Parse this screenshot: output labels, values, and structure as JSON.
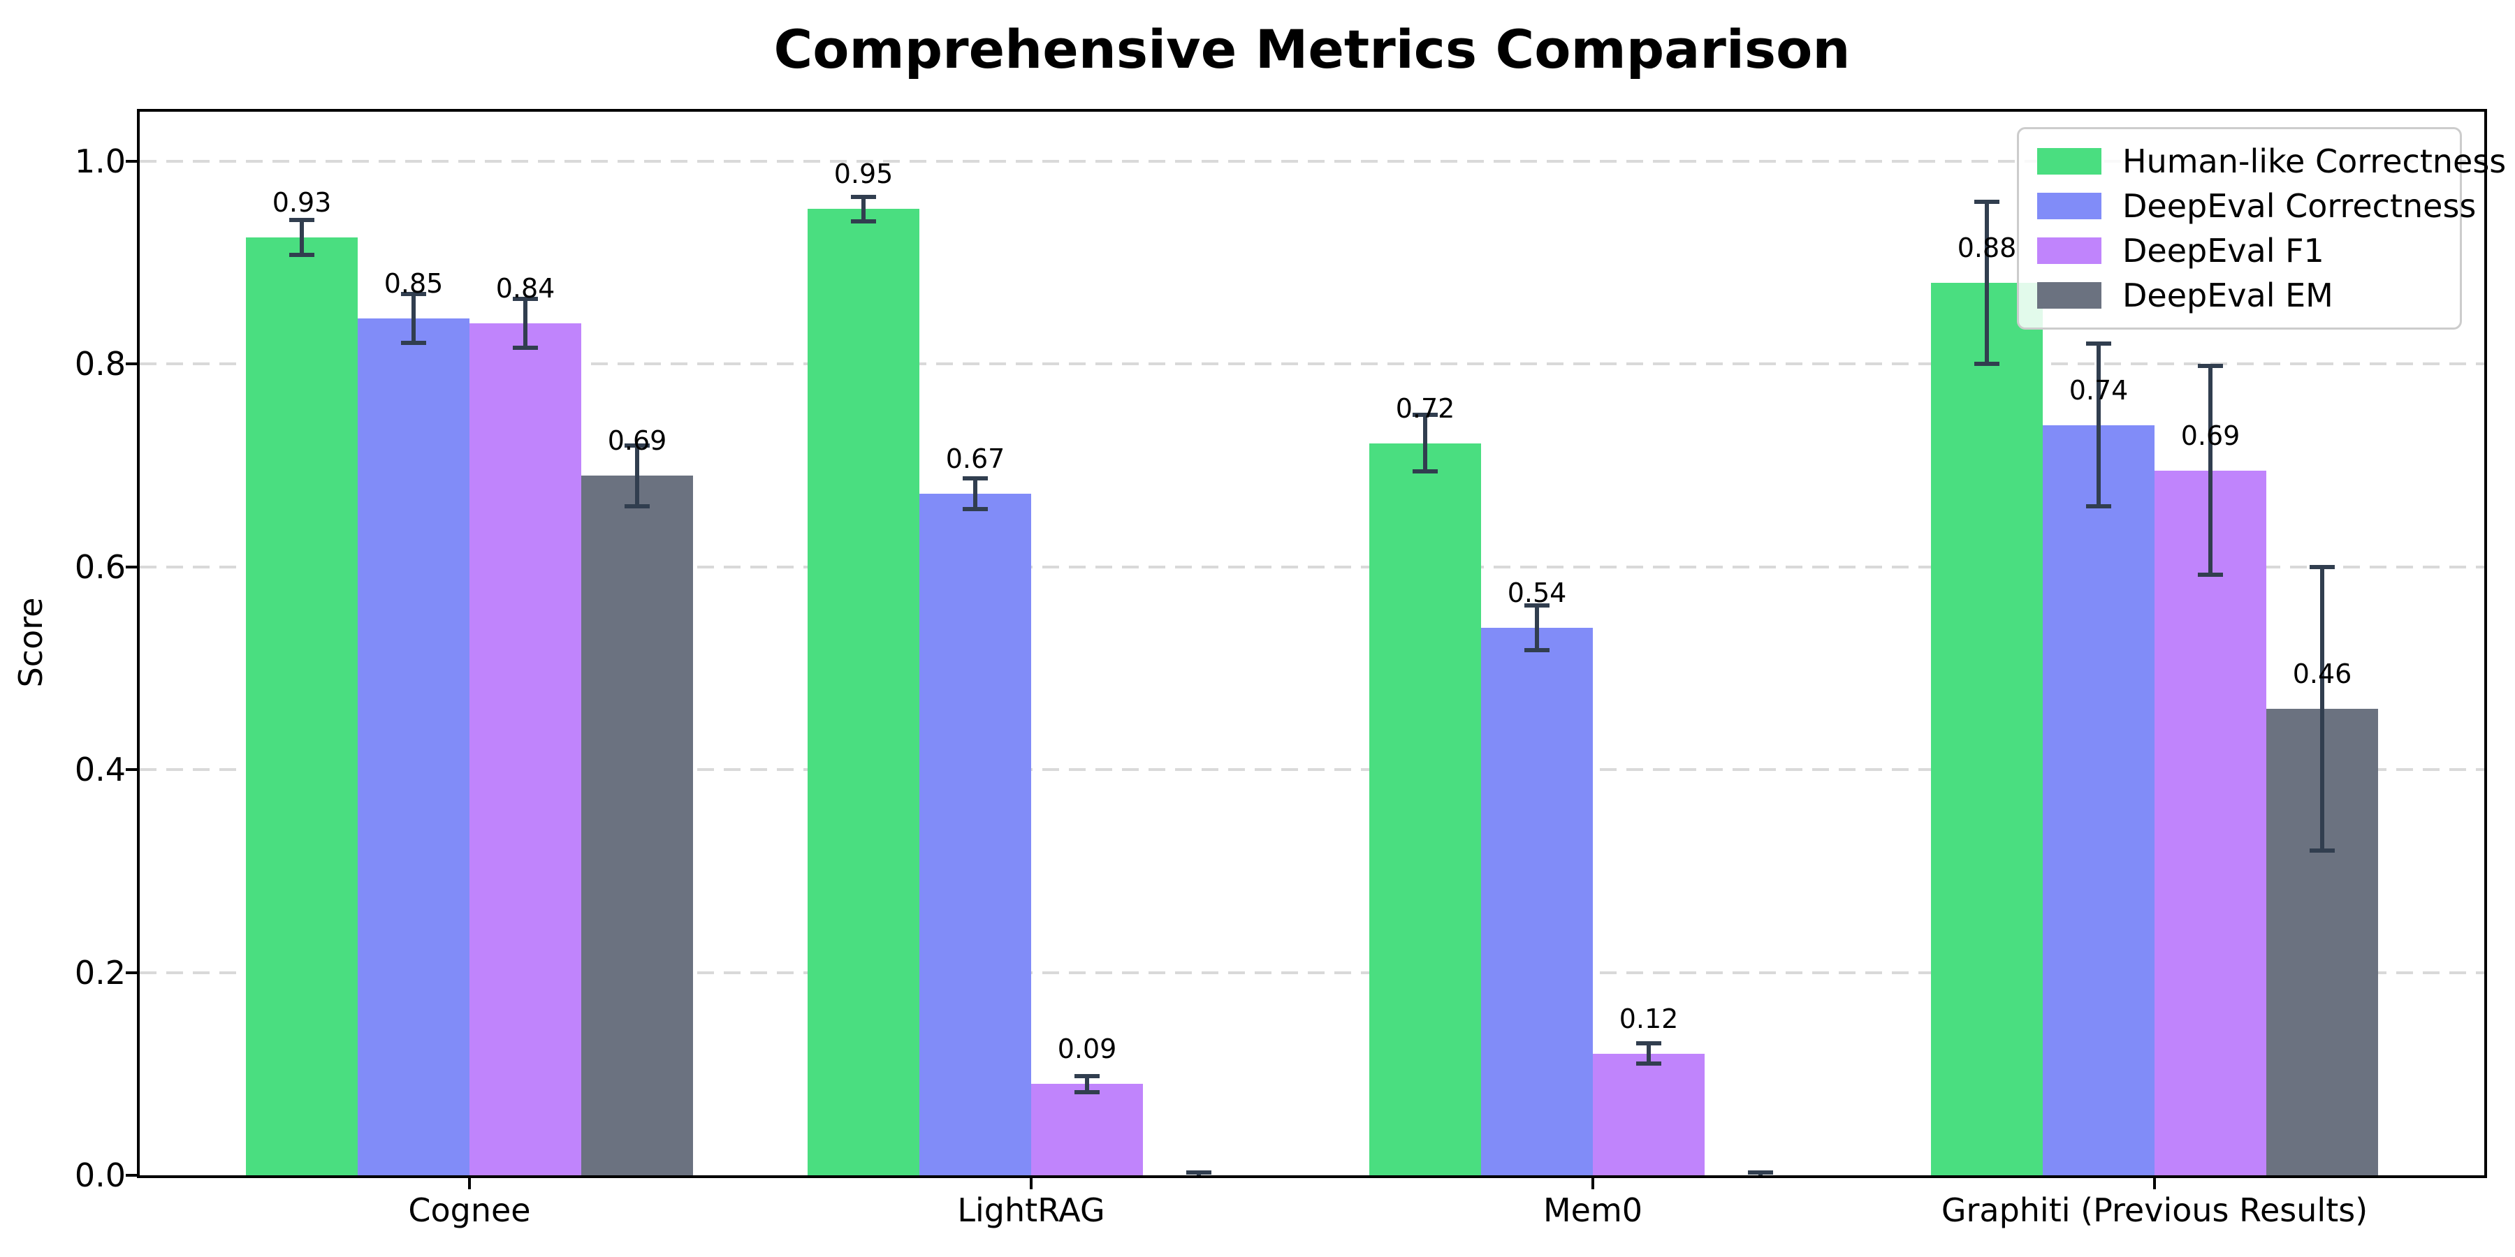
{
  "title": "Comprehensive Metrics Comparison",
  "chart_data": {
    "type": "bar",
    "title": "Comprehensive Metrics Comparison",
    "xlabel": "",
    "ylabel": "Score",
    "ylim": [
      0.0,
      1.05
    ],
    "yticks": [
      0.0,
      0.2,
      0.4,
      0.6,
      0.8,
      1.0
    ],
    "grid": "horizontal-dashed",
    "legend_position": "upper right",
    "categories": [
      "Cognee",
      "LightRAG",
      "Mem0",
      "Graphiti (Previous Results)"
    ],
    "series": [
      {
        "name": "Human-like Correctness",
        "color": "#4ade80",
        "values": [
          0.925,
          0.953,
          0.722,
          0.88
        ],
        "errors": [
          0.017,
          0.012,
          0.028,
          0.08
        ],
        "labels": [
          "0.93",
          "0.95",
          "0.72",
          "0.88"
        ]
      },
      {
        "name": "DeepEval Correctness",
        "color": "#818cf8",
        "values": [
          0.845,
          0.672,
          0.54,
          0.74
        ],
        "errors": [
          0.024,
          0.015,
          0.022,
          0.08
        ],
        "labels": [
          "0.85",
          "0.67",
          "0.54",
          "0.74"
        ]
      },
      {
        "name": "DeepEval F1",
        "color": "#c084fc",
        "values": [
          0.84,
          0.09,
          0.12,
          0.695
        ],
        "errors": [
          0.024,
          0.008,
          0.01,
          0.103
        ],
        "labels": [
          "0.84",
          "0.09",
          "0.12",
          "0.69"
        ]
      },
      {
        "name": "DeepEval EM",
        "color": "#6b7280",
        "values": [
          0.69,
          0.0,
          0.0,
          0.46
        ],
        "errors": [
          0.03,
          0.003,
          0.003,
          0.14
        ],
        "labels": [
          "0.69",
          "",
          "",
          "0.46"
        ]
      }
    ],
    "error_bar_color": "#313e4f",
    "grid_color": "#d9d9d9",
    "axis_color": "#000000",
    "background_color": "#ffffff"
  }
}
